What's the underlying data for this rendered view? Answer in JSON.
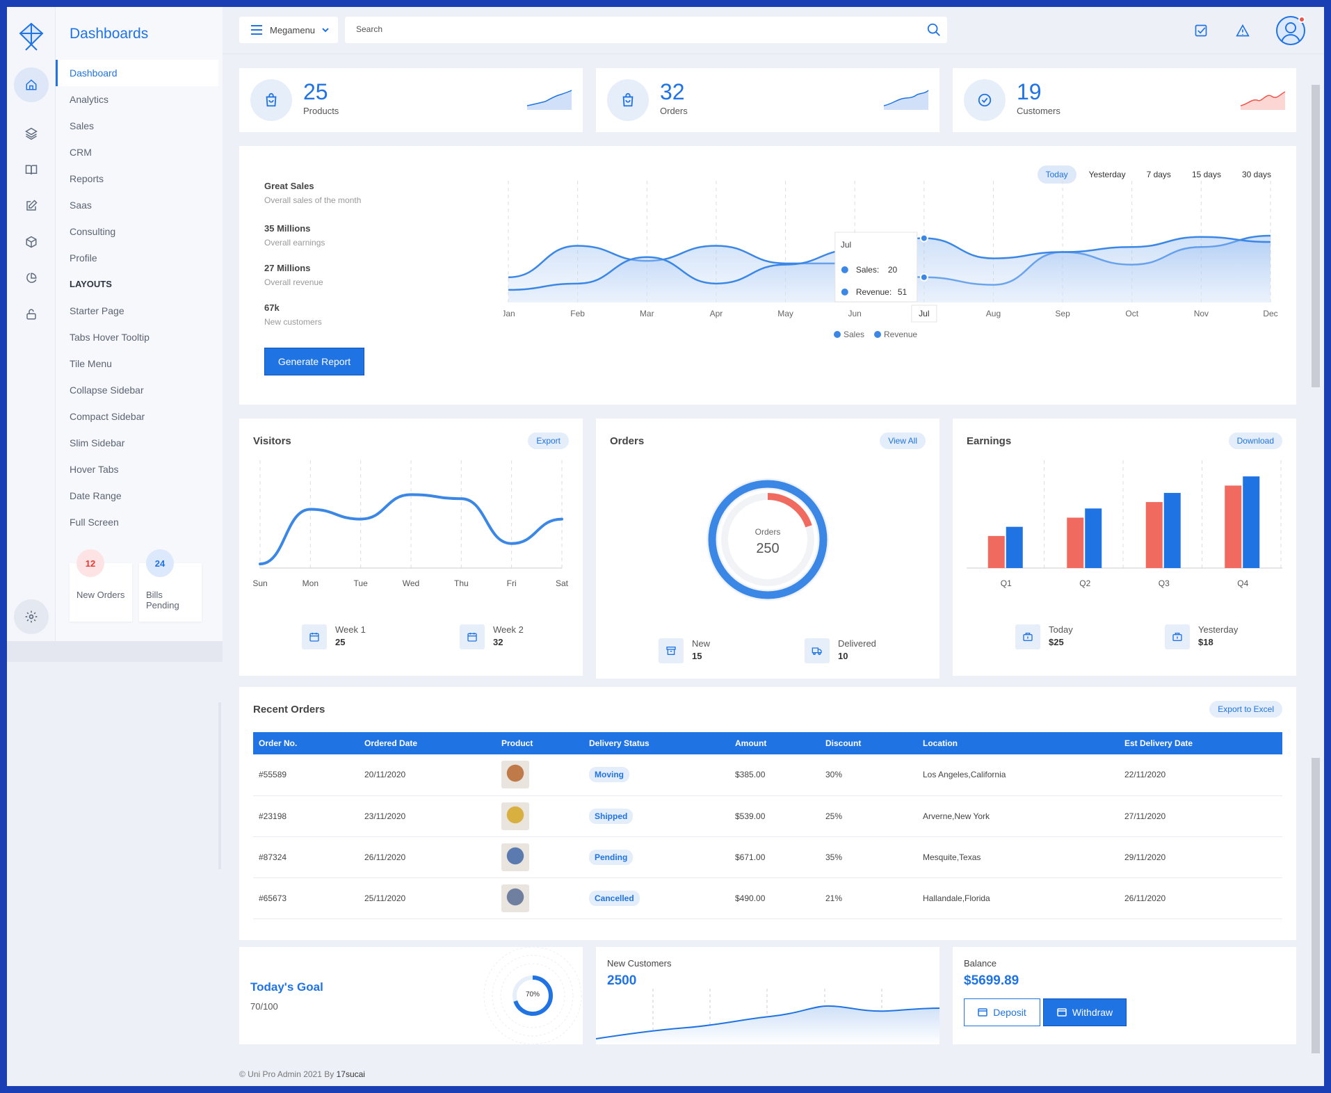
{
  "sidebar": {
    "title": "Dashboards",
    "items": [
      {
        "label": "Dashboard",
        "active": true
      },
      {
        "label": "Analytics"
      },
      {
        "label": "Sales"
      },
      {
        "label": "CRM"
      },
      {
        "label": "Reports"
      },
      {
        "label": "Saas"
      },
      {
        "label": "Consulting"
      },
      {
        "label": "Profile"
      }
    ],
    "section_label": "LAYOUTS",
    "layout_items": [
      "Starter Page",
      "Tabs Hover Tooltip",
      "Tile Menu",
      "Collapse Sidebar",
      "Compact Sidebar",
      "Slim Sidebar",
      "Hover Tabs",
      "Date Range",
      "Full Screen"
    ],
    "widgets": [
      {
        "count": "12",
        "label": "New Orders",
        "color": "#e53935",
        "bg": "#fde3e3"
      },
      {
        "count": "24",
        "label": "Bills Pending",
        "color": "#1f73e3",
        "bg": "#dce8fb"
      }
    ],
    "rail_icons": [
      "home-icon",
      "layers-icon",
      "book-icon",
      "edit-icon",
      "box-icon",
      "pie-chart-icon",
      "lock-icon",
      "gear-icon"
    ]
  },
  "topbar": {
    "megamenu_label": "Megamenu",
    "search_placeholder": "Search"
  },
  "stats": [
    {
      "value": "25",
      "label": "Products",
      "color": "#1f73e3",
      "icon": "shopping-bag-icon"
    },
    {
      "value": "32",
      "label": "Orders",
      "color": "#1f73e3",
      "icon": "shopping-bag-icon"
    },
    {
      "value": "19",
      "label": "Customers",
      "color": "#f0534a",
      "icon": "check-circle-icon"
    }
  ],
  "great_sales": {
    "title": "Great Sales",
    "subtitle": "Overall sales of the month",
    "metrics": [
      {
        "value": "35 Millions",
        "label": "Overall earnings"
      },
      {
        "value": "27 Millions",
        "label": "Overall revenue"
      },
      {
        "value": "67k",
        "label": "New customers"
      }
    ],
    "button_label": "Generate Report",
    "ranges": [
      "Today",
      "Yesterday",
      "7 days",
      "15 days",
      "30 days"
    ],
    "tooltip": {
      "month": "Jul",
      "sales_label": "Sales:",
      "sales_value": "20",
      "revenue_label": "Revenue:",
      "revenue_value": "51"
    }
  },
  "visitors": {
    "title": "Visitors",
    "button_label": "Export",
    "footer": [
      {
        "label": "Week 1",
        "value": "25"
      },
      {
        "label": "Week 2",
        "value": "32"
      }
    ]
  },
  "orders_card": {
    "title": "Orders",
    "button_label": "View All",
    "center_label": "Orders",
    "center_value": "250",
    "footer": [
      {
        "label": "New",
        "value": "15"
      },
      {
        "label": "Delivered",
        "value": "10"
      }
    ]
  },
  "earnings": {
    "title": "Earnings",
    "button_label": "Download",
    "footer": [
      {
        "label": "Today",
        "value": "$25"
      },
      {
        "label": "Yesterday",
        "value": "$18"
      }
    ]
  },
  "recent_orders": {
    "title": "Recent Orders",
    "button_label": "Export to Excel",
    "columns": [
      "Order No.",
      "Ordered Date",
      "Product",
      "Delivery Status",
      "Amount",
      "Discount",
      "Location",
      "Est Delivery Date"
    ],
    "rows": [
      {
        "order": "#55589",
        "date": "20/11/2020",
        "product_color": "#c07a4a",
        "status": "Moving",
        "amount": "$385.00",
        "discount": "30%",
        "location": "Los Angeles,California",
        "est": "22/11/2020"
      },
      {
        "order": "#23198",
        "date": "23/11/2020",
        "product_color": "#d8b040",
        "status": "Shipped",
        "amount": "$539.00",
        "discount": "25%",
        "location": "Arverne,New York",
        "est": "27/11/2020"
      },
      {
        "order": "#87324",
        "date": "26/11/2020",
        "product_color": "#5a7ab0",
        "status": "Pending",
        "amount": "$671.00",
        "discount": "35%",
        "location": "Mesquite,Texas",
        "est": "29/11/2020"
      },
      {
        "order": "#65673",
        "date": "25/11/2020",
        "product_color": "#6e7fa0",
        "status": "Cancelled",
        "amount": "$490.00",
        "discount": "21%",
        "location": "Hallandale,Florida",
        "est": "26/11/2020"
      }
    ]
  },
  "goal": {
    "title": "Today's Goal",
    "value": "70/100",
    "percent_label": "70%",
    "percent": 70
  },
  "new_customers": {
    "label": "New Customers",
    "value": "2500"
  },
  "balance": {
    "label": "Balance",
    "value": "$5699.89",
    "deposit_label": "Deposit",
    "withdraw_label": "Withdraw"
  },
  "footer": {
    "text": "© Uni Pro Admin 2021 By",
    "author": "17sucai"
  },
  "chart_data": [
    {
      "type": "area",
      "title": "",
      "categories": [
        "Jan",
        "Feb",
        "Mar",
        "Apr",
        "May",
        "Jun",
        "Jul",
        "Aug",
        "Sep",
        "Oct",
        "Nov",
        "Dec"
      ],
      "series": [
        {
          "name": "Sales",
          "values": [
            20,
            45,
            33,
            45,
            31,
            31,
            20,
            14,
            40,
            30,
            44,
            53
          ]
        },
        {
          "name": "Revenue",
          "values": [
            10,
            15,
            36,
            15,
            30,
            42,
            51,
            35,
            40,
            44,
            52,
            48
          ]
        }
      ],
      "ylim": [
        0,
        80
      ],
      "legend": "bottom",
      "colors": [
        "#3b87e6",
        "#3b87e6"
      ]
    },
    {
      "type": "line",
      "title": "",
      "categories": [
        "Sun",
        "Mon",
        "Tue",
        "Wed",
        "Thu",
        "Fri",
        "Sat"
      ],
      "values": [
        5,
        72,
        60,
        90,
        85,
        30,
        60
      ],
      "ylim": [
        0,
        115
      ],
      "color": "#3b87e6"
    },
    {
      "type": "pie",
      "title": "",
      "categories": [
        "Orders",
        "Pending"
      ],
      "values": [
        250,
        0.2
      ],
      "outer_fraction": 1.0,
      "inner_fraction": 0.2,
      "colors": [
        "#3b87e6",
        "#f06a5f"
      ]
    },
    {
      "type": "bar",
      "title": "",
      "categories": [
        "Q1",
        "Q2",
        "Q3",
        "Q4"
      ],
      "series": [
        {
          "name": "",
          "values": [
            35,
            55,
            72,
            90
          ],
          "color": "#f06a5f"
        },
        {
          "name": "",
          "values": [
            45,
            65,
            82,
            100
          ],
          "color": "#1f73e3"
        }
      ],
      "ylim": [
        0,
        110
      ]
    }
  ]
}
